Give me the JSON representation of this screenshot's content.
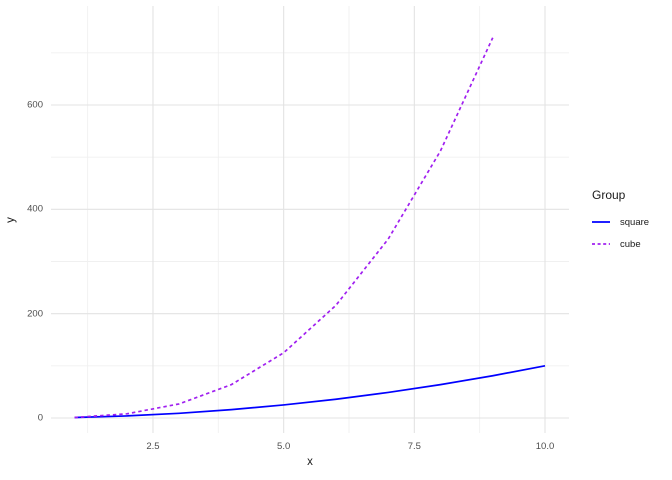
{
  "chart_data": {
    "type": "line",
    "xlabel": "x",
    "ylabel": "y",
    "xlim": [
      0.549,
      10.459
    ],
    "ylim": [
      -28.75,
      789.8
    ],
    "grid": true,
    "background": "#ffffff",
    "grid_major_color": "#e3e3e3",
    "grid_minor_color": "#f0f0f0",
    "tick_text_color": "#4d4d4d",
    "x_ticks": {
      "major": [
        2.5,
        5.0,
        7.5,
        10.0
      ],
      "labels": [
        "2.5",
        "5.0",
        "7.5",
        "10.0"
      ],
      "minor": [
        1.25,
        3.75,
        6.25,
        8.75
      ]
    },
    "y_ticks": {
      "major": [
        0,
        200,
        400,
        600
      ],
      "labels": [
        "0",
        "200",
        "400",
        "600"
      ],
      "minor": [
        100,
        300,
        500,
        700
      ]
    },
    "legend": {
      "title": "Group",
      "position": "right",
      "entries": [
        {
          "label": "square",
          "color": "#0000ff",
          "dash": "solid"
        },
        {
          "label": "cube",
          "color": "#a020f0",
          "dash": "dashed"
        }
      ]
    },
    "series": [
      {
        "name": "square",
        "color": "#0000ff",
        "dash": "solid",
        "x": [
          1,
          2,
          3,
          4,
          5,
          6,
          7,
          8,
          9,
          10
        ],
        "y": [
          1,
          4,
          9,
          16,
          25,
          36,
          49,
          64,
          81,
          100
        ]
      },
      {
        "name": "cube",
        "color": "#a020f0",
        "dash": "dashed",
        "x": [
          1,
          2,
          3,
          4,
          5,
          6,
          7,
          8,
          9
        ],
        "y": [
          1,
          8,
          27,
          64,
          125,
          216,
          343,
          512,
          729
        ]
      }
    ]
  }
}
